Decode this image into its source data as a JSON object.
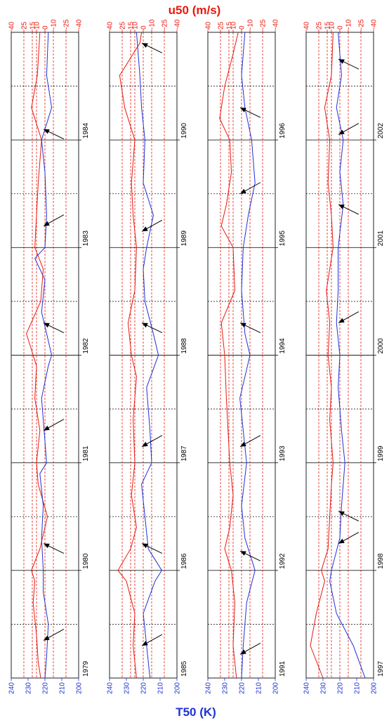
{
  "chart_data": {
    "type": "line",
    "top_axis_label": "u50 (m/s)",
    "bottom_axis_label": "T50 (K)",
    "u_ticks": [
      "40",
      "25",
      "15",
      "10",
      "0",
      "-10",
      "-25",
      "-40"
    ],
    "u_tick_values": [
      40,
      25,
      15,
      10,
      0,
      -10,
      -25,
      -40
    ],
    "t_ticks": [
      "240",
      "230",
      "220",
      "210",
      "200"
    ],
    "t_tick_values": [
      240,
      230,
      220,
      210,
      200
    ],
    "t_range": [
      240,
      200
    ],
    "colors": {
      "u50": "#e8190f",
      "t50": "#1f32d6",
      "grid": "#222222",
      "ugrid": "#e8190f",
      "arrow": "#000000"
    },
    "panels": [
      {
        "years": [
          "1979",
          "1980",
          "1981",
          "1982",
          "1983",
          "1984"
        ],
        "u50": [
          [
            0,
            5
          ],
          [
            0.15,
            8
          ],
          [
            0.4,
            10
          ],
          [
            0.7,
            14
          ],
          [
            0.9,
            12
          ],
          [
            1,
            16
          ],
          [
            1.2,
            6
          ],
          [
            1.5,
            -3
          ],
          [
            1.8,
            8
          ],
          [
            2,
            10
          ],
          [
            2.3,
            6
          ],
          [
            2.6,
            12
          ],
          [
            2.9,
            10
          ],
          [
            3,
            14
          ],
          [
            3.2,
            22
          ],
          [
            3.5,
            5
          ],
          [
            3.8,
            2
          ],
          [
            4,
            12
          ],
          [
            4.3,
            10
          ],
          [
            4.6,
            8
          ],
          [
            5,
            4
          ],
          [
            5.3,
            16
          ],
          [
            5.6,
            9
          ],
          [
            6,
            6
          ]
        ],
        "t50": [
          [
            0,
            220
          ],
          [
            0.2,
            219
          ],
          [
            0.5,
            218
          ],
          [
            0.8,
            221
          ],
          [
            1,
            221
          ],
          [
            1.3,
            222
          ],
          [
            1.6,
            221
          ],
          [
            1.9,
            223
          ],
          [
            2,
            219
          ],
          [
            2.2,
            220
          ],
          [
            2.6,
            222
          ],
          [
            2.9,
            218
          ],
          [
            3,
            216
          ],
          [
            3.2,
            219
          ],
          [
            3.4,
            222
          ],
          [
            3.7,
            220
          ],
          [
            3.9,
            226
          ],
          [
            4,
            220
          ],
          [
            4.3,
            219
          ],
          [
            4.7,
            220
          ],
          [
            5,
            222
          ],
          [
            5.3,
            216
          ],
          [
            5.6,
            219
          ],
          [
            6,
            218
          ]
        ],
        "arrows": [
          0.35,
          1.25,
          2.3,
          3.3,
          4.2,
          5.1
        ]
      },
      {
        "years": [
          "1985",
          "1986",
          "1987",
          "1988",
          "1989",
          "1990"
        ],
        "u50": [
          [
            0,
            8
          ],
          [
            0.3,
            12
          ],
          [
            0.6,
            10
          ],
          [
            0.9,
            20
          ],
          [
            1,
            30
          ],
          [
            1.2,
            15
          ],
          [
            1.4,
            8
          ],
          [
            1.7,
            14
          ],
          [
            2,
            10
          ],
          [
            2.4,
            12
          ],
          [
            2.8,
            8
          ],
          [
            3,
            14
          ],
          [
            3.3,
            18
          ],
          [
            3.6,
            10
          ],
          [
            4,
            8
          ],
          [
            4.3,
            12
          ],
          [
            4.6,
            14
          ],
          [
            5,
            10
          ],
          [
            5.3,
            22
          ],
          [
            5.6,
            28
          ],
          [
            5.9,
            4
          ],
          [
            6,
            2
          ]
        ],
        "t50": [
          [
            0,
            216
          ],
          [
            0.3,
            218
          ],
          [
            0.6,
            220
          ],
          [
            0.9,
            213
          ],
          [
            1,
            209
          ],
          [
            1.2,
            217
          ],
          [
            1.5,
            219
          ],
          [
            1.8,
            221
          ],
          [
            2,
            215
          ],
          [
            2.3,
            216
          ],
          [
            2.7,
            218
          ],
          [
            3,
            211
          ],
          [
            3.2,
            214
          ],
          [
            3.5,
            219
          ],
          [
            3.8,
            220
          ],
          [
            4,
            218
          ],
          [
            4.3,
            214
          ],
          [
            4.6,
            220
          ],
          [
            5,
            219
          ],
          [
            5.3,
            221
          ],
          [
            5.6,
            222
          ],
          [
            6,
            224
          ]
        ],
        "arrows": [
          0.3,
          1.25,
          2.15,
          3.3,
          4.15,
          5.9
        ]
      },
      {
        "years": [
          "1991",
          "1992",
          "1993",
          "1994",
          "1995",
          "1996"
        ],
        "u50": [
          [
            0,
            6
          ],
          [
            0.3,
            10
          ],
          [
            0.7,
            8
          ],
          [
            1,
            12
          ],
          [
            1.2,
            20
          ],
          [
            1.4,
            14
          ],
          [
            1.7,
            10
          ],
          [
            2,
            14
          ],
          [
            2.3,
            16
          ],
          [
            2.6,
            18
          ],
          [
            3,
            20
          ],
          [
            3.3,
            24
          ],
          [
            3.6,
            8
          ],
          [
            4,
            10
          ],
          [
            4.2,
            24
          ],
          [
            4.4,
            18
          ],
          [
            4.7,
            12
          ],
          [
            5,
            14
          ],
          [
            5.2,
            26
          ],
          [
            5.5,
            20
          ],
          [
            5.8,
            10
          ],
          [
            6,
            4
          ]
        ],
        "t50": [
          [
            0,
            220
          ],
          [
            0.3,
            219
          ],
          [
            0.7,
            217
          ],
          [
            1,
            212
          ],
          [
            1.3,
            218
          ],
          [
            1.6,
            220
          ],
          [
            2,
            217
          ],
          [
            2.3,
            219
          ],
          [
            2.6,
            221
          ],
          [
            3,
            215
          ],
          [
            3.2,
            218
          ],
          [
            3.6,
            220
          ],
          [
            4,
            219
          ],
          [
            4.3,
            216
          ],
          [
            4.6,
            212
          ],
          [
            5,
            214
          ],
          [
            5.3,
            218
          ],
          [
            5.6,
            220
          ],
          [
            6,
            218
          ]
        ],
        "arrows": [
          0.22,
          1.18,
          2.15,
          3.3,
          4.5,
          5.3
        ]
      },
      {
        "years": [
          "1997",
          "1998",
          "1999",
          "2000",
          "2001",
          "2002"
        ],
        "u50": [
          [
            0,
            20
          ],
          [
            0.3,
            35
          ],
          [
            0.6,
            28
          ],
          [
            0.9,
            18
          ],
          [
            1,
            22
          ],
          [
            1.2,
            14
          ],
          [
            1.5,
            12
          ],
          [
            1.8,
            10
          ],
          [
            2,
            8
          ],
          [
            2.4,
            12
          ],
          [
            2.7,
            10
          ],
          [
            3,
            14
          ],
          [
            3.3,
            12
          ],
          [
            3.6,
            16
          ],
          [
            4,
            8
          ],
          [
            4.3,
            10
          ],
          [
            4.6,
            14
          ],
          [
            5,
            12
          ],
          [
            5.3,
            18
          ],
          [
            5.6,
            10
          ],
          [
            6,
            8
          ]
        ],
        "t50": [
          [
            0,
            205
          ],
          [
            0.3,
            212
          ],
          [
            0.6,
            222
          ],
          [
            0.9,
            226
          ],
          [
            1,
            225
          ],
          [
            1.3,
            220
          ],
          [
            1.6,
            219
          ],
          [
            2,
            217
          ],
          [
            2.3,
            219
          ],
          [
            2.7,
            221
          ],
          [
            3,
            220
          ],
          [
            3.3,
            222
          ],
          [
            3.6,
            221
          ],
          [
            4,
            221
          ],
          [
            4.4,
            218
          ],
          [
            4.7,
            220
          ],
          [
            5,
            218
          ],
          [
            5.3,
            222
          ],
          [
            5.6,
            219
          ],
          [
            6,
            221
          ]
        ],
        "arrows": [
          1.25,
          1.55,
          3.3,
          4.4,
          5.05,
          5.75
        ]
      }
    ]
  }
}
